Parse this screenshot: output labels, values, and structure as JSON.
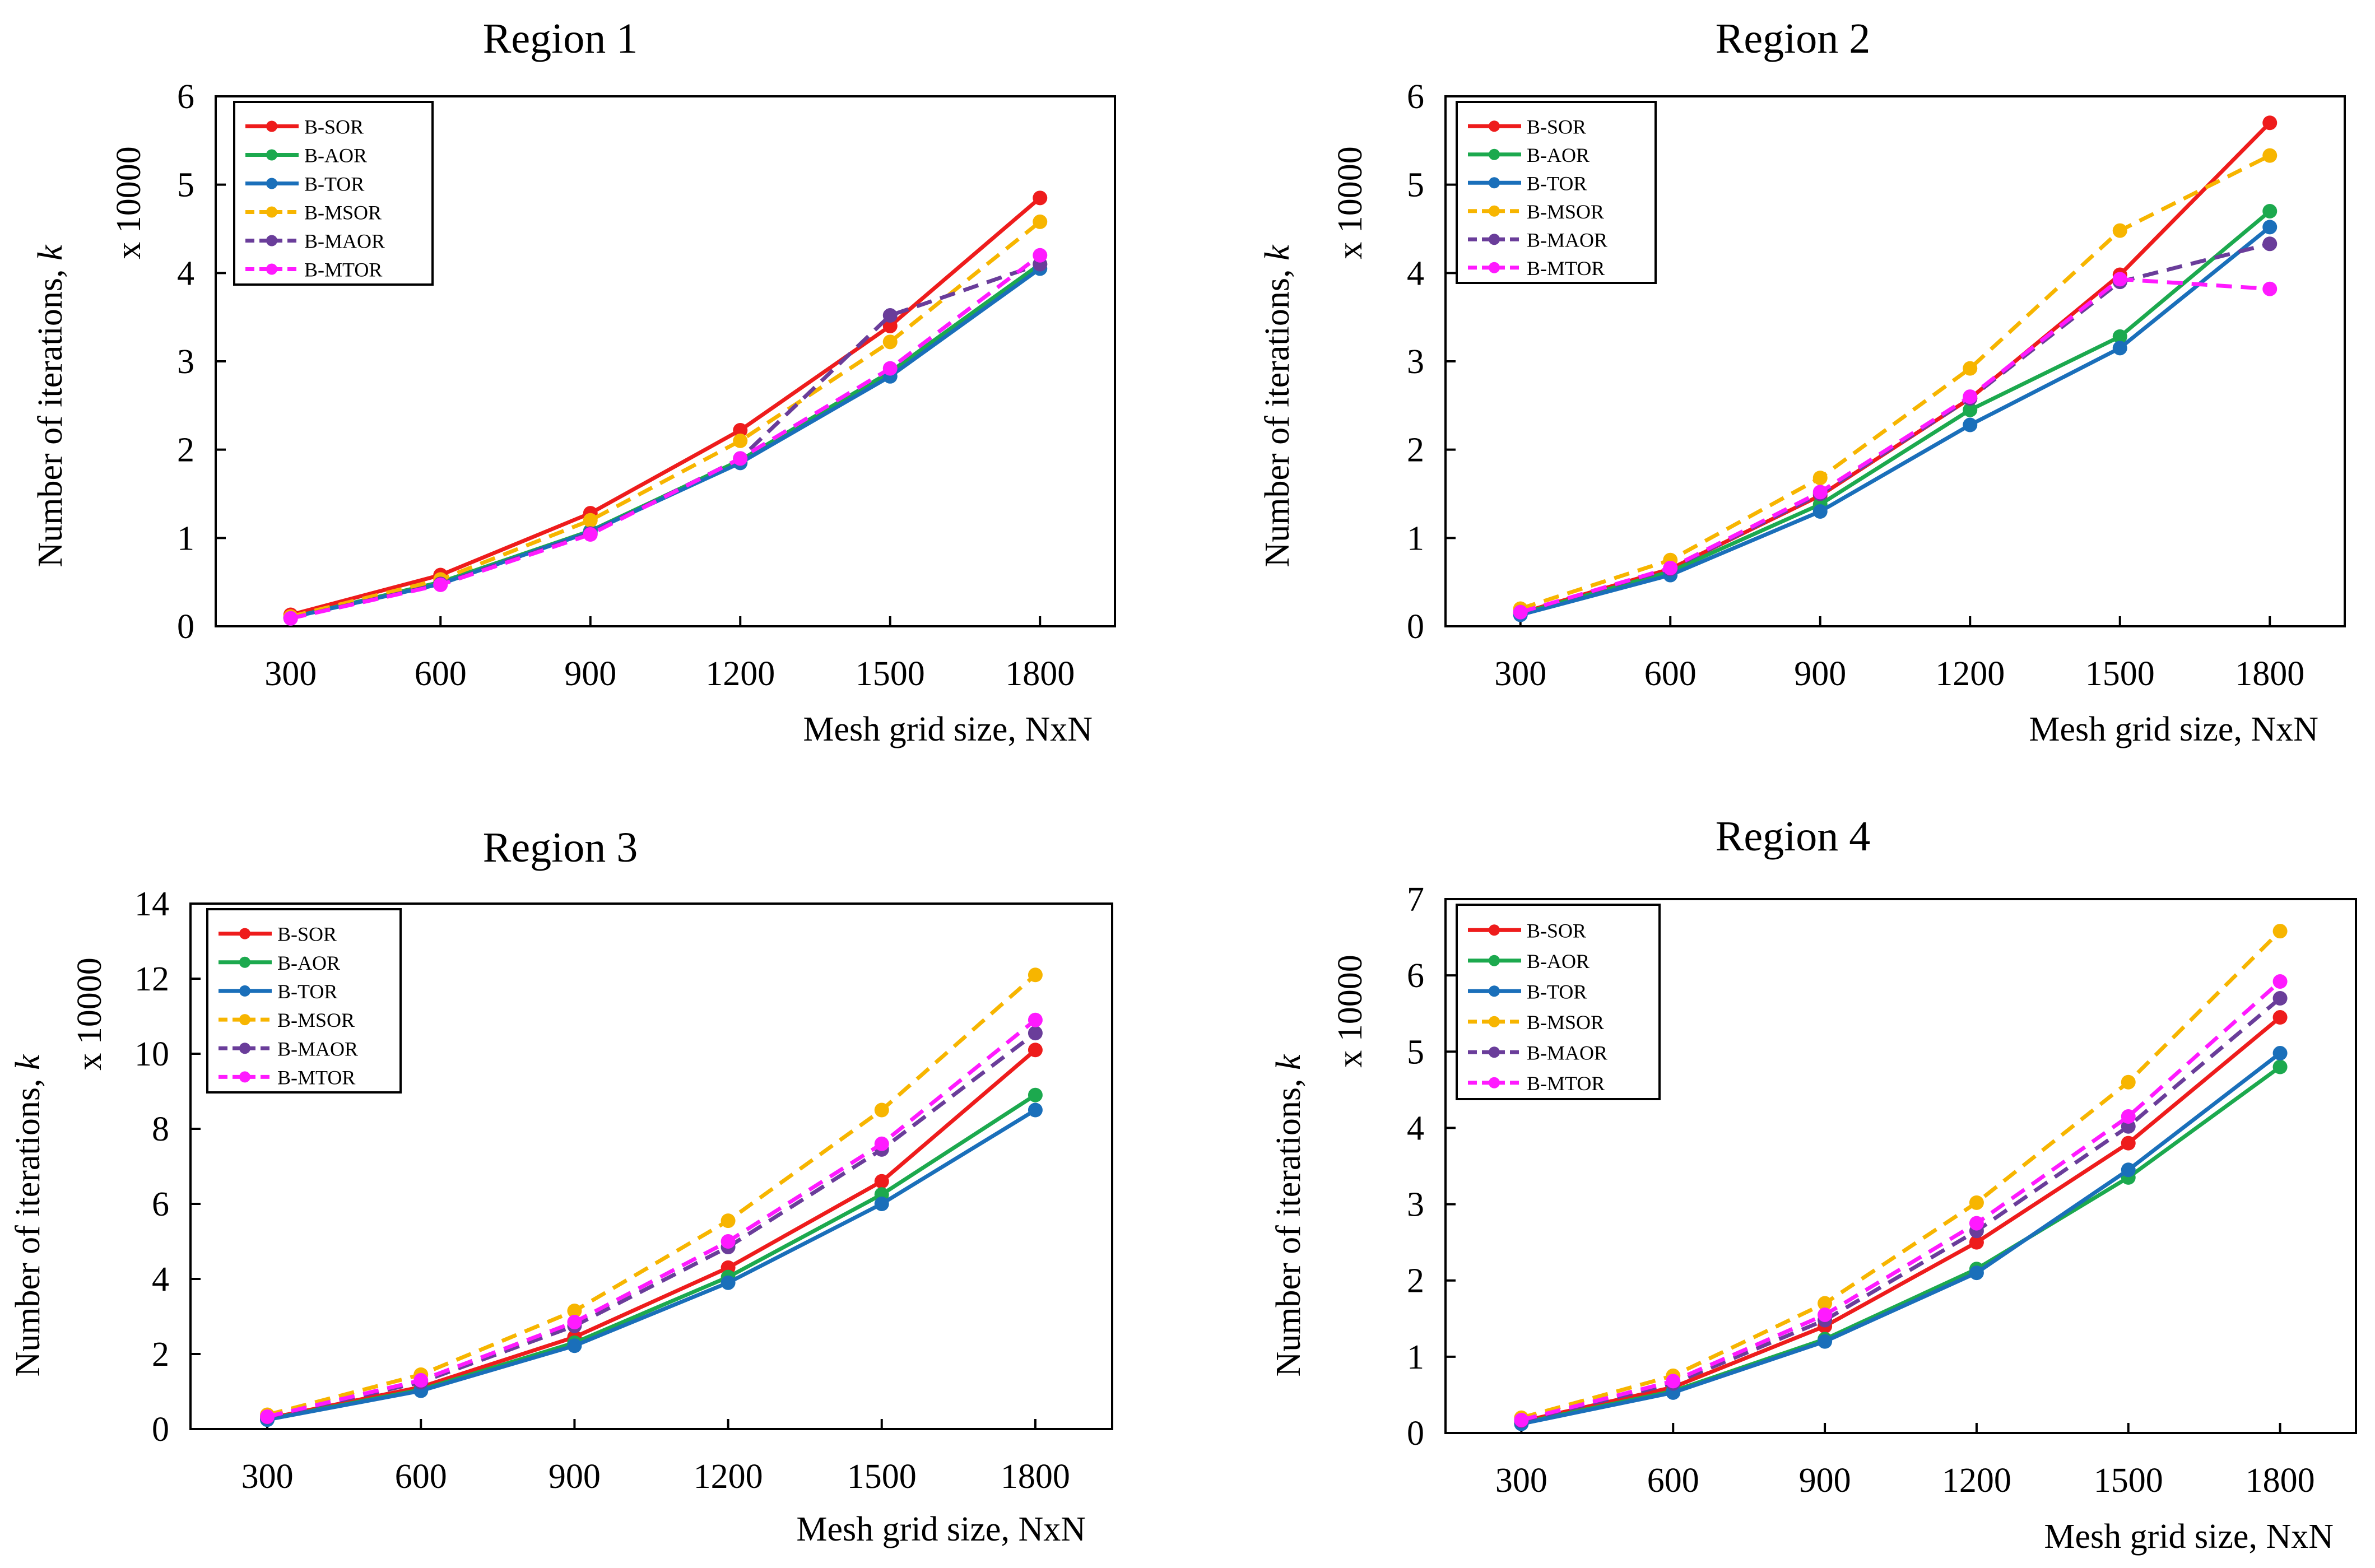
{
  "chart_data": [
    {
      "type": "line",
      "title": "Region 1",
      "xlabel": "Mesh grid size, NxN",
      "ylabel": "Number of iterations, k",
      "ylabel_prefix": "Number of iterations, ",
      "ylabel_var": "k",
      "multiplier": "x 10000",
      "x": [
        300,
        600,
        900,
        1200,
        1500,
        1800
      ],
      "xlim": [
        150,
        1950
      ],
      "ylim": [
        0,
        6
      ],
      "yticks": [
        0,
        1,
        2,
        3,
        4,
        5,
        6
      ],
      "legend": "top-left",
      "series": [
        {
          "name": "B-SOR",
          "color": "#ee1c1c",
          "dash": "solid",
          "values": [
            0.13,
            0.58,
            1.28,
            2.22,
            3.4,
            4.85
          ]
        },
        {
          "name": "B-AOR",
          "color": "#1ca94e",
          "dash": "solid",
          "values": [
            0.1,
            0.5,
            1.08,
            1.88,
            2.88,
            4.1
          ]
        },
        {
          "name": "B-TOR",
          "color": "#1a6fba",
          "dash": "solid",
          "values": [
            0.1,
            0.48,
            1.07,
            1.85,
            2.83,
            4.05
          ]
        },
        {
          "name": "B-MSOR",
          "color": "#f7b500",
          "dash": "dashed",
          "values": [
            0.11,
            0.53,
            1.2,
            2.1,
            3.22,
            4.58
          ]
        },
        {
          "name": "B-MAOR",
          "color": "#6a3d9a",
          "dash": "dashed",
          "values": [
            0.09,
            0.48,
            1.05,
            1.9,
            3.52,
            4.1
          ]
        },
        {
          "name": "B-MTOR",
          "color": "#ff1aff",
          "dash": "dashed",
          "values": [
            0.09,
            0.47,
            1.04,
            1.9,
            2.92,
            4.2
          ]
        }
      ]
    },
    {
      "type": "line",
      "title": "Region 2",
      "xlabel": "Mesh grid size, NxN",
      "ylabel": "Number of iterations, k",
      "ylabel_prefix": "Number of iterations, ",
      "ylabel_var": "k",
      "multiplier": "x 10000",
      "x": [
        300,
        600,
        900,
        1200,
        1500,
        1800
      ],
      "xlim": [
        150,
        1950
      ],
      "ylim": [
        0,
        6
      ],
      "yticks": [
        0,
        1,
        2,
        3,
        4,
        5,
        6
      ],
      "legend": "top-left",
      "series": [
        {
          "name": "B-SOR",
          "color": "#ee1c1c",
          "dash": "solid",
          "values": [
            0.15,
            0.65,
            1.48,
            2.58,
            3.98,
            5.7
          ]
        },
        {
          "name": "B-AOR",
          "color": "#1ca94e",
          "dash": "solid",
          "values": [
            0.14,
            0.62,
            1.38,
            2.45,
            3.28,
            4.7
          ]
        },
        {
          "name": "B-TOR",
          "color": "#1a6fba",
          "dash": "solid",
          "values": [
            0.13,
            0.58,
            1.3,
            2.28,
            3.15,
            4.52
          ]
        },
        {
          "name": "B-MSOR",
          "color": "#f7b500",
          "dash": "dashed",
          "values": [
            0.2,
            0.75,
            1.68,
            2.92,
            4.48,
            5.33
          ]
        },
        {
          "name": "B-MAOR",
          "color": "#6a3d9a",
          "dash": "dashed",
          "values": [
            0.16,
            0.65,
            1.5,
            2.58,
            3.9,
            4.33
          ]
        },
        {
          "name": "B-MTOR",
          "color": "#ff1aff",
          "dash": "dashed",
          "values": [
            0.16,
            0.66,
            1.52,
            2.6,
            3.93,
            3.82
          ]
        }
      ]
    },
    {
      "type": "line",
      "title": "Region 3",
      "xlabel": "Mesh grid size, NxN",
      "ylabel": "Number of iterations, k",
      "ylabel_prefix": "Number of iterations, ",
      "ylabel_var": "k",
      "multiplier": "x 10000",
      "x": [
        300,
        600,
        900,
        1200,
        1500,
        1800
      ],
      "xlim": [
        150,
        1950
      ],
      "ylim": [
        0,
        14
      ],
      "yticks": [
        0,
        2,
        4,
        6,
        8,
        10,
        12,
        14
      ],
      "legend": "top-left",
      "series": [
        {
          "name": "B-SOR",
          "color": "#ee1c1c",
          "dash": "solid",
          "values": [
            0.28,
            1.12,
            2.45,
            4.3,
            6.6,
            10.1
          ]
        },
        {
          "name": "B-AOR",
          "color": "#1ca94e",
          "dash": "solid",
          "values": [
            0.26,
            1.05,
            2.3,
            4.05,
            6.25,
            8.9
          ]
        },
        {
          "name": "B-TOR",
          "color": "#1a6fba",
          "dash": "solid",
          "values": [
            0.25,
            1.02,
            2.22,
            3.9,
            6.0,
            8.5
          ]
        },
        {
          "name": "B-MSOR",
          "color": "#f7b500",
          "dash": "dashed",
          "values": [
            0.38,
            1.45,
            3.15,
            5.55,
            8.5,
            12.1
          ]
        },
        {
          "name": "B-MAOR",
          "color": "#6a3d9a",
          "dash": "dashed",
          "values": [
            0.32,
            1.25,
            2.75,
            4.85,
            7.45,
            10.55
          ]
        },
        {
          "name": "B-MTOR",
          "color": "#ff1aff",
          "dash": "dashed",
          "values": [
            0.33,
            1.3,
            2.85,
            5.0,
            7.6,
            10.9
          ]
        }
      ]
    },
    {
      "type": "line",
      "title": "Region 4",
      "xlabel": "Mesh grid size, NxN",
      "ylabel": "Number of iterations, k",
      "ylabel_prefix": "Number of iterations, ",
      "ylabel_var": "k",
      "multiplier": "x 10000",
      "x": [
        300,
        600,
        900,
        1200,
        1500,
        1800
      ],
      "xlim": [
        150,
        1950
      ],
      "ylim": [
        0,
        7
      ],
      "yticks": [
        0,
        1,
        2,
        3,
        4,
        5,
        6,
        7
      ],
      "legend": "top-left",
      "series": [
        {
          "name": "B-SOR",
          "color": "#ee1c1c",
          "dash": "solid",
          "values": [
            0.15,
            0.6,
            1.4,
            2.5,
            3.8,
            5.45
          ]
        },
        {
          "name": "B-AOR",
          "color": "#1ca94e",
          "dash": "solid",
          "values": [
            0.13,
            0.55,
            1.23,
            2.15,
            3.35,
            4.8
          ]
        },
        {
          "name": "B-TOR",
          "color": "#1a6fba",
          "dash": "solid",
          "values": [
            0.12,
            0.53,
            1.2,
            2.1,
            3.45,
            4.98
          ]
        },
        {
          "name": "B-MSOR",
          "color": "#f7b500",
          "dash": "dashed",
          "values": [
            0.2,
            0.75,
            1.7,
            3.02,
            4.6,
            6.58
          ]
        },
        {
          "name": "B-MAOR",
          "color": "#6a3d9a",
          "dash": "dashed",
          "values": [
            0.16,
            0.65,
            1.48,
            2.65,
            4.02,
            5.7
          ]
        },
        {
          "name": "B-MTOR",
          "color": "#ff1aff",
          "dash": "dashed",
          "values": [
            0.17,
            0.68,
            1.55,
            2.75,
            4.15,
            5.92
          ]
        }
      ]
    }
  ]
}
